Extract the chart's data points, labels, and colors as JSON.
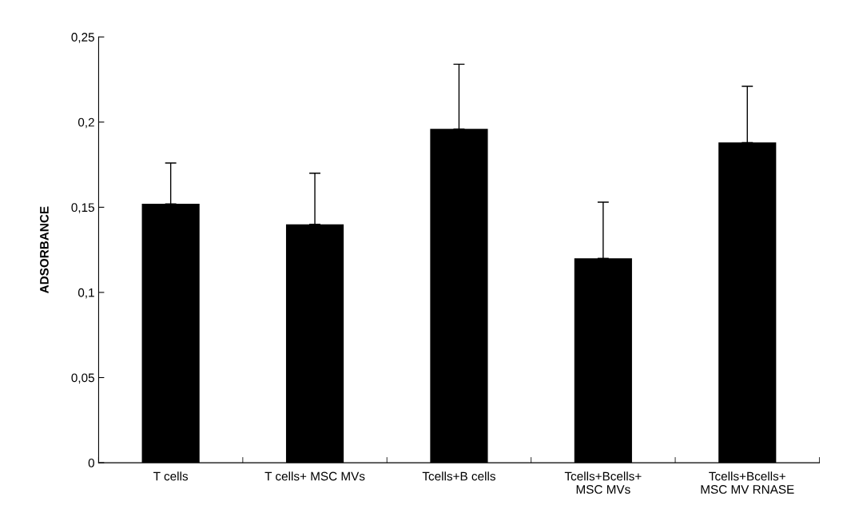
{
  "chart_data": {
    "type": "bar",
    "ylabel": "ADSORBANCE",
    "categories": [
      "T cells",
      "T cells+ MSC MVs",
      "Tcells+B cells",
      "Tcells+Bcells+\nMSC MVs",
      "Tcells+Bcells+\nMSC MV RNASE"
    ],
    "values": [
      0.152,
      0.14,
      0.196,
      0.12,
      0.188
    ],
    "errors": [
      [
        0.152,
        0.176
      ],
      [
        0.14,
        0.17
      ],
      [
        0.196,
        0.234
      ],
      [
        0.12,
        0.153
      ],
      [
        0.188,
        0.221
      ]
    ],
    "color": "#000000",
    "ylim": [
      0,
      0.25
    ],
    "yticks": [
      0,
      {
        "value": 0.05,
        "label": "0,05"
      },
      {
        "value": 0.1,
        "label": "0,1"
      },
      {
        "value": 0.15,
        "label": "0,15"
      },
      {
        "value": 0.2,
        "label": "0,2"
      },
      {
        "value": 0.25,
        "label": "0,25"
      }
    ],
    "grid": false,
    "legend": false
  }
}
